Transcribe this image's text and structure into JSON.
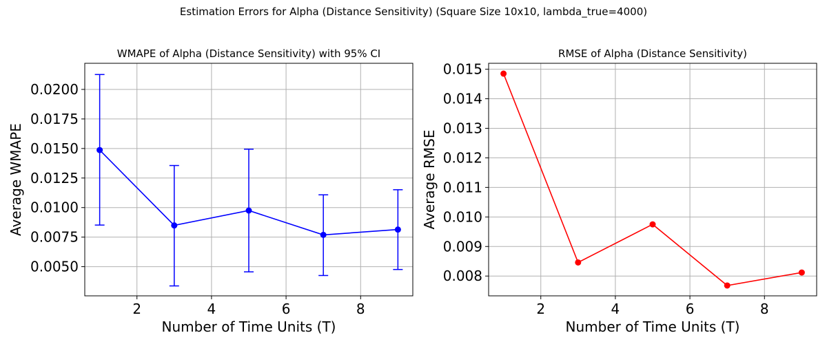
{
  "figure": {
    "suptitle": "Estimation Errors for Alpha (Distance Sensitivity) (Square Size 10x10, lambda_true=4000)"
  },
  "chart_data": [
    {
      "type": "line",
      "title": "WMAPE of Alpha (Distance Sensitivity) with 95% CI",
      "xlabel": "Number of Time Units (T)",
      "ylabel": "Average WMAPE",
      "x": [
        1,
        3,
        5,
        7,
        9
      ],
      "series": [
        {
          "values": [
            0.01487,
            0.00849,
            0.00975,
            0.00769,
            0.00814
          ],
          "ci_low": [
            0.00852,
            0.00337,
            0.00456,
            0.00425,
            0.00476
          ],
          "ci_high": [
            0.02126,
            0.01356,
            0.01494,
            0.01108,
            0.01151
          ],
          "color": "#0000ff",
          "marker": "circle",
          "error_bars": true
        }
      ],
      "xlim": [
        0.6,
        9.4
      ],
      "ylim": [
        0.00253,
        0.02221
      ],
      "xticks": [
        2,
        4,
        6,
        8
      ],
      "yticks": [
        0.005,
        0.0075,
        0.01,
        0.0125,
        0.015,
        0.0175,
        0.02
      ],
      "ytick_labels": [
        "0.0050",
        "0.0075",
        "0.0100",
        "0.0125",
        "0.0150",
        "0.0175",
        "0.0200"
      ],
      "grid": true
    },
    {
      "type": "line",
      "title": "RMSE of Alpha (Distance Sensitivity)",
      "xlabel": "Number of Time Units (T)",
      "ylabel": "Average RMSE",
      "x": [
        1,
        3,
        5,
        7,
        9
      ],
      "series": [
        {
          "values": [
            0.01485,
            0.00846,
            0.00975,
            0.00768,
            0.00812
          ],
          "color": "#ff0000",
          "marker": "circle",
          "error_bars": false
        }
      ],
      "xlim": [
        0.6,
        9.4
      ],
      "ylim": [
        0.00733,
        0.0152
      ],
      "xticks": [
        2,
        4,
        6,
        8
      ],
      "yticks": [
        0.008,
        0.009,
        0.01,
        0.011,
        0.012,
        0.013,
        0.014,
        0.015
      ],
      "ytick_labels": [
        "0.008",
        "0.009",
        "0.010",
        "0.011",
        "0.012",
        "0.013",
        "0.014",
        "0.015"
      ],
      "grid": true
    }
  ]
}
